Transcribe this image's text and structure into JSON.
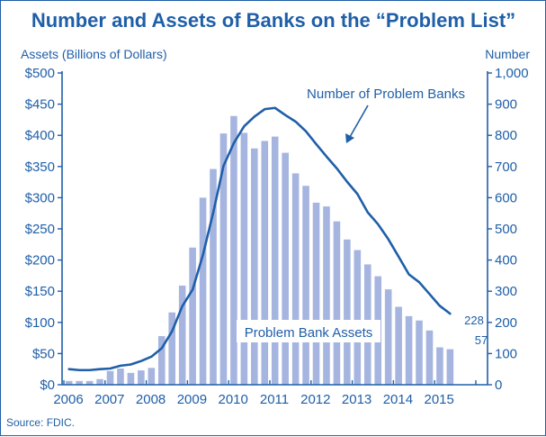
{
  "chart_data": {
    "type": "bar",
    "title": "Number and Assets of Banks on the “Problem List”",
    "ylabel_left": "Assets (Billions of Dollars)",
    "ylabel_right": "Number",
    "source": "Source: FDIC.",
    "ylim_left": [
      0,
      500
    ],
    "ylim_right": [
      0,
      1000
    ],
    "left_ticks": [
      "$0",
      "$50",
      "$100",
      "$150",
      "$200",
      "$250",
      "$300",
      "$350",
      "$400",
      "$450",
      "$500"
    ],
    "right_ticks": [
      "0",
      "100",
      "200",
      "300",
      "400",
      "500",
      "600",
      "700",
      "800",
      "900",
      "1,000"
    ],
    "x_tick_labels": [
      "2006",
      "2007",
      "2008",
      "2009",
      "2010",
      "2011",
      "2012",
      "2013",
      "2014",
      "2015"
    ],
    "categories": [
      "2006Q1",
      "2006Q2",
      "2006Q3",
      "2006Q4",
      "2007Q1",
      "2007Q2",
      "2007Q3",
      "2007Q4",
      "2008Q1",
      "2008Q2",
      "2008Q3",
      "2008Q4",
      "2009Q1",
      "2009Q2",
      "2009Q3",
      "2009Q4",
      "2010Q1",
      "2010Q2",
      "2010Q3",
      "2010Q4",
      "2011Q1",
      "2011Q2",
      "2011Q3",
      "2011Q4",
      "2012Q1",
      "2012Q2",
      "2012Q3",
      "2012Q4",
      "2013Q1",
      "2013Q2",
      "2013Q3",
      "2013Q4",
      "2014Q1",
      "2014Q2",
      "2014Q3",
      "2014Q4",
      "2015Q1",
      "2015Q2"
    ],
    "series": [
      {
        "name": "Problem Bank Assets",
        "axis": "left",
        "kind": "bar",
        "color": "#a6b5e0",
        "values": [
          6,
          6,
          6,
          9,
          22,
          26,
          19,
          23,
          27,
          78,
          116,
          159,
          220,
          300,
          346,
          403,
          431,
          404,
          379,
          391,
          398,
          372,
          339,
          319,
          292,
          286,
          262,
          233,
          216,
          193,
          174,
          153,
          125,
          110,
          103,
          87,
          60,
          57
        ]
      },
      {
        "name": "Number of Problem Banks",
        "axis": "right",
        "kind": "line",
        "color": "#1f5fa8",
        "values": [
          50,
          47,
          47,
          50,
          52,
          61,
          65,
          76,
          90,
          117,
          171,
          252,
          305,
          416,
          552,
          702,
          775,
          829,
          860,
          884,
          888,
          865,
          844,
          813,
          772,
          732,
          694,
          651,
          612,
          553,
          515,
          467,
          411,
          354,
          329,
          291,
          253,
          228
        ]
      }
    ],
    "annotations": [
      {
        "text": "Number of Problem Banks"
      },
      {
        "text": "Problem Bank Assets"
      },
      {
        "text": "228"
      },
      {
        "text": "57"
      }
    ],
    "grid": false,
    "legend": "none"
  }
}
